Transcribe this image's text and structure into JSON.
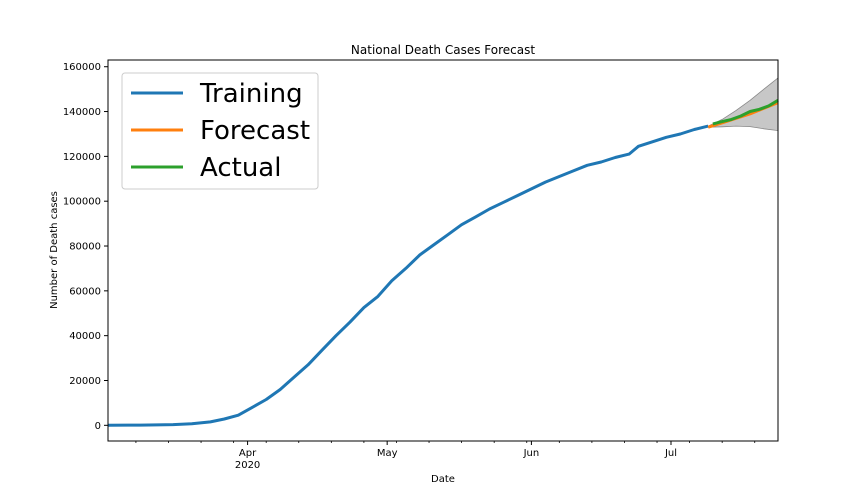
{
  "chart_data": {
    "type": "line",
    "title": "National Death Cases Forecast",
    "xlabel": "Date",
    "ylabel": "Number of Death cases",
    "x_range": [
      "2020-03-02",
      "2020-07-24"
    ],
    "ylim": [
      -7000,
      163000
    ],
    "y_ticks": [
      0,
      20000,
      40000,
      60000,
      80000,
      100000,
      120000,
      140000,
      160000
    ],
    "x_major_ticks": [
      {
        "date": "2020-04-01",
        "label": "Apr",
        "sublabel": "2020"
      },
      {
        "date": "2020-05-01",
        "label": "May",
        "sublabel": ""
      },
      {
        "date": "2020-06-01",
        "label": "Jun",
        "sublabel": ""
      },
      {
        "date": "2020-07-01",
        "label": "Jul",
        "sublabel": ""
      }
    ],
    "x_minor_ticks": [
      "2020-03-08",
      "2020-03-15",
      "2020-03-22",
      "2020-03-29",
      "2020-04-05",
      "2020-04-12",
      "2020-04-19",
      "2020-04-26",
      "2020-05-03",
      "2020-05-10",
      "2020-05-17",
      "2020-05-24",
      "2020-05-31",
      "2020-06-07",
      "2020-06-14",
      "2020-06-21",
      "2020-06-28",
      "2020-07-05",
      "2020-07-12",
      "2020-07-19"
    ],
    "grid": false,
    "legend_position": "top-left",
    "series": [
      {
        "name": "Training",
        "color": "#1f77b4",
        "points": [
          [
            "2020-03-02",
            0
          ],
          [
            "2020-03-09",
            100
          ],
          [
            "2020-03-16",
            300
          ],
          [
            "2020-03-20",
            700
          ],
          [
            "2020-03-24",
            1500
          ],
          [
            "2020-03-27",
            2800
          ],
          [
            "2020-03-30",
            4500
          ],
          [
            "2020-04-02",
            8000
          ],
          [
            "2020-04-05",
            11500
          ],
          [
            "2020-04-08",
            16000
          ],
          [
            "2020-04-11",
            21500
          ],
          [
            "2020-04-14",
            27000
          ],
          [
            "2020-04-17",
            33500
          ],
          [
            "2020-04-20",
            40000
          ],
          [
            "2020-04-23",
            46000
          ],
          [
            "2020-04-26",
            52500
          ],
          [
            "2020-04-29",
            57500
          ],
          [
            "2020-05-02",
            64500
          ],
          [
            "2020-05-05",
            70000
          ],
          [
            "2020-05-08",
            76000
          ],
          [
            "2020-05-11",
            80500
          ],
          [
            "2020-05-14",
            85000
          ],
          [
            "2020-05-17",
            89500
          ],
          [
            "2020-05-20",
            93000
          ],
          [
            "2020-05-23",
            96500
          ],
          [
            "2020-05-26",
            99500
          ],
          [
            "2020-05-29",
            102500
          ],
          [
            "2020-06-01",
            105500
          ],
          [
            "2020-06-04",
            108500
          ],
          [
            "2020-06-07",
            111000
          ],
          [
            "2020-06-10",
            113500
          ],
          [
            "2020-06-13",
            116000
          ],
          [
            "2020-06-16",
            117500
          ],
          [
            "2020-06-19",
            119500
          ],
          [
            "2020-06-22",
            121000
          ],
          [
            "2020-06-24",
            124500
          ],
          [
            "2020-06-27",
            126500
          ],
          [
            "2020-06-30",
            128500
          ],
          [
            "2020-07-03",
            130000
          ],
          [
            "2020-07-06",
            132000
          ],
          [
            "2020-07-09",
            133500
          ]
        ]
      },
      {
        "name": "Forecast",
        "color": "#ff7f0e",
        "points": [
          [
            "2020-07-09",
            133000
          ],
          [
            "2020-07-12",
            135000
          ],
          [
            "2020-07-15",
            137000
          ],
          [
            "2020-07-18",
            139000
          ],
          [
            "2020-07-21",
            141500
          ],
          [
            "2020-07-24",
            144000
          ]
        ]
      },
      {
        "name": "Actual",
        "color": "#2ca02c",
        "points": [
          [
            "2020-07-10",
            134500
          ],
          [
            "2020-07-12",
            135500
          ],
          [
            "2020-07-14",
            136500
          ],
          [
            "2020-07-16",
            138000
          ],
          [
            "2020-07-18",
            140000
          ],
          [
            "2020-07-20",
            141000
          ],
          [
            "2020-07-22",
            142500
          ],
          [
            "2020-07-24",
            145000
          ]
        ]
      }
    ],
    "confidence_band": {
      "color": "#b4b4b4",
      "points": [
        [
          "2020-07-09",
          133000,
          133500
        ],
        [
          "2020-07-12",
          133200,
          136500
        ],
        [
          "2020-07-15",
          133500,
          140500
        ],
        [
          "2020-07-18",
          133300,
          145000
        ],
        [
          "2020-07-21",
          132300,
          150000
        ],
        [
          "2020-07-24",
          131500,
          155000
        ]
      ]
    }
  }
}
